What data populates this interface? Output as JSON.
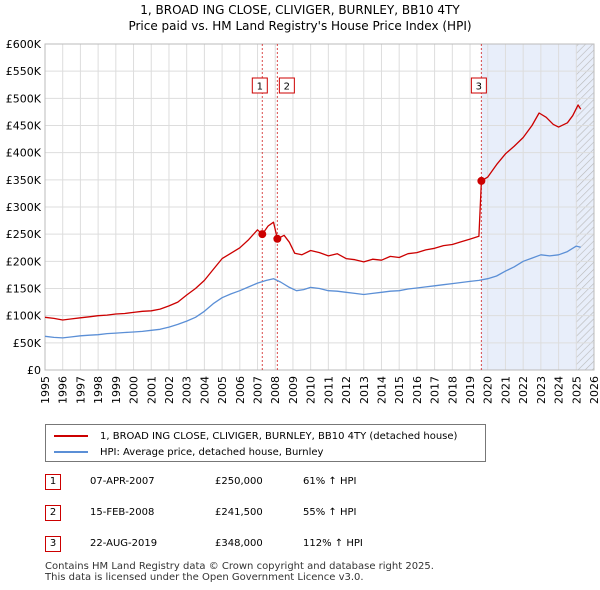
{
  "title": {
    "line1": "1, BROAD ING CLOSE, CLIVIGER, BURNLEY, BB10 4TY",
    "line2": "Price paid vs. HM Land Registry's House Price Index (HPI)"
  },
  "chart_data": {
    "type": "line",
    "xlim": [
      1995,
      2026
    ],
    "ylim": [
      0,
      600000
    ],
    "y_ticks": [
      0,
      50000,
      100000,
      150000,
      200000,
      250000,
      300000,
      350000,
      400000,
      450000,
      500000,
      550000,
      600000
    ],
    "y_tick_labels": [
      "£0",
      "£50K",
      "£100K",
      "£150K",
      "£200K",
      "£250K",
      "£300K",
      "£350K",
      "£400K",
      "£450K",
      "£500K",
      "£550K",
      "£600K"
    ],
    "x_tick_labels": [
      "1995",
      "1996",
      "1997",
      "1998",
      "1999",
      "2000",
      "2001",
      "2002",
      "2003",
      "2004",
      "2005",
      "2006",
      "2007",
      "2008",
      "2009",
      "2010",
      "2011",
      "2012",
      "2013",
      "2014",
      "2015",
      "2016",
      "2017",
      "2018",
      "2019",
      "2020",
      "2021",
      "2022",
      "2023",
      "2024",
      "2025",
      "2026"
    ],
    "grid": true,
    "highlight_range": [
      2019.64,
      2026
    ],
    "hatch_from": 2025.0,
    "series": [
      {
        "name": "1, BROAD ING CLOSE, CLIVIGER, BURNLEY, BB10 4TY (detached house)",
        "color": "#cc0000",
        "points": [
          [
            1995.0,
            97000
          ],
          [
            1995.5,
            95000
          ],
          [
            1996.0,
            92000
          ],
          [
            1996.5,
            94000
          ],
          [
            1997.0,
            96000
          ],
          [
            1997.5,
            98000
          ],
          [
            1998.0,
            100000
          ],
          [
            1998.5,
            101000
          ],
          [
            1999.0,
            103000
          ],
          [
            1999.5,
            104000
          ],
          [
            2000.0,
            106000
          ],
          [
            2000.5,
            108000
          ],
          [
            2001.0,
            109000
          ],
          [
            2001.5,
            112000
          ],
          [
            2002.0,
            118000
          ],
          [
            2002.5,
            125000
          ],
          [
            2003.0,
            138000
          ],
          [
            2003.5,
            150000
          ],
          [
            2004.0,
            165000
          ],
          [
            2004.5,
            185000
          ],
          [
            2005.0,
            205000
          ],
          [
            2005.5,
            215000
          ],
          [
            2006.0,
            225000
          ],
          [
            2006.5,
            240000
          ],
          [
            2007.0,
            258000
          ],
          [
            2007.27,
            250000
          ],
          [
            2007.6,
            265000
          ],
          [
            2007.9,
            272000
          ],
          [
            2008.12,
            241500
          ],
          [
            2008.5,
            248000
          ],
          [
            2008.8,
            235000
          ],
          [
            2009.1,
            215000
          ],
          [
            2009.5,
            212000
          ],
          [
            2010.0,
            220000
          ],
          [
            2010.5,
            216000
          ],
          [
            2011.0,
            210000
          ],
          [
            2011.5,
            214000
          ],
          [
            2012.0,
            205000
          ],
          [
            2012.5,
            203000
          ],
          [
            2013.0,
            199000
          ],
          [
            2013.5,
            204000
          ],
          [
            2014.0,
            202000
          ],
          [
            2014.5,
            209000
          ],
          [
            2015.0,
            207000
          ],
          [
            2015.5,
            214000
          ],
          [
            2016.0,
            216000
          ],
          [
            2016.5,
            221000
          ],
          [
            2017.0,
            224000
          ],
          [
            2017.5,
            229000
          ],
          [
            2018.0,
            231000
          ],
          [
            2018.5,
            236000
          ],
          [
            2019.0,
            241000
          ],
          [
            2019.5,
            246000
          ],
          [
            2019.64,
            348000
          ],
          [
            2020.0,
            355000
          ],
          [
            2020.5,
            378000
          ],
          [
            2021.0,
            398000
          ],
          [
            2021.5,
            412000
          ],
          [
            2022.0,
            428000
          ],
          [
            2022.5,
            450000
          ],
          [
            2022.9,
            473000
          ],
          [
            2023.3,
            465000
          ],
          [
            2023.7,
            452000
          ],
          [
            2024.0,
            447000
          ],
          [
            2024.5,
            455000
          ],
          [
            2024.8,
            468000
          ],
          [
            2025.1,
            488000
          ],
          [
            2025.25,
            480000
          ]
        ]
      },
      {
        "name": "HPI: Average price, detached house, Burnley",
        "color": "#5b8fd6",
        "points": [
          [
            1995.0,
            62000
          ],
          [
            1995.5,
            60000
          ],
          [
            1996.0,
            59000
          ],
          [
            1996.5,
            61000
          ],
          [
            1997.0,
            63000
          ],
          [
            1997.5,
            64000
          ],
          [
            1998.0,
            65000
          ],
          [
            1998.5,
            67000
          ],
          [
            1999.0,
            68000
          ],
          [
            1999.5,
            69000
          ],
          [
            2000.0,
            70000
          ],
          [
            2000.5,
            71000
          ],
          [
            2001.0,
            73000
          ],
          [
            2001.5,
            75000
          ],
          [
            2002.0,
            79000
          ],
          [
            2002.5,
            84000
          ],
          [
            2003.0,
            90000
          ],
          [
            2003.5,
            97000
          ],
          [
            2004.0,
            108000
          ],
          [
            2004.5,
            122000
          ],
          [
            2005.0,
            133000
          ],
          [
            2005.5,
            140000
          ],
          [
            2006.0,
            146000
          ],
          [
            2006.5,
            153000
          ],
          [
            2007.0,
            160000
          ],
          [
            2007.5,
            165000
          ],
          [
            2007.9,
            168000
          ],
          [
            2008.3,
            162000
          ],
          [
            2008.8,
            152000
          ],
          [
            2009.2,
            146000
          ],
          [
            2009.6,
            148000
          ],
          [
            2010.0,
            152000
          ],
          [
            2010.5,
            150000
          ],
          [
            2011.0,
            146000
          ],
          [
            2011.5,
            145000
          ],
          [
            2012.0,
            143000
          ],
          [
            2012.5,
            141000
          ],
          [
            2013.0,
            139000
          ],
          [
            2013.5,
            141000
          ],
          [
            2014.0,
            143000
          ],
          [
            2014.5,
            145000
          ],
          [
            2015.0,
            146000
          ],
          [
            2015.5,
            149000
          ],
          [
            2016.0,
            151000
          ],
          [
            2016.5,
            153000
          ],
          [
            2017.0,
            155000
          ],
          [
            2017.5,
            157000
          ],
          [
            2018.0,
            159000
          ],
          [
            2018.5,
            161000
          ],
          [
            2019.0,
            163000
          ],
          [
            2019.5,
            165000
          ],
          [
            2020.0,
            168000
          ],
          [
            2020.5,
            173000
          ],
          [
            2021.0,
            182000
          ],
          [
            2021.5,
            190000
          ],
          [
            2022.0,
            200000
          ],
          [
            2022.5,
            206000
          ],
          [
            2023.0,
            212000
          ],
          [
            2023.5,
            210000
          ],
          [
            2024.0,
            212000
          ],
          [
            2024.5,
            218000
          ],
          [
            2025.0,
            228000
          ],
          [
            2025.25,
            226000
          ]
        ]
      }
    ],
    "sales": [
      {
        "label": "1",
        "x": 2007.27,
        "y": 250000
      },
      {
        "label": "2",
        "x": 2008.12,
        "y": 241500
      },
      {
        "label": "3",
        "x": 2019.64,
        "y": 348000
      }
    ]
  },
  "legend": {
    "property": "1, BROAD ING CLOSE, CLIVIGER, BURNLEY, BB10 4TY (detached house)",
    "hpi": "HPI: Average price, detached house, Burnley",
    "property_color": "#cc0000",
    "hpi_color": "#5b8fd6"
  },
  "transactions": [
    {
      "num": "1",
      "date": "07-APR-2007",
      "price": "£250,000",
      "hpi": "61% ↑ HPI"
    },
    {
      "num": "2",
      "date": "15-FEB-2008",
      "price": "£241,500",
      "hpi": "55% ↑ HPI"
    },
    {
      "num": "3",
      "date": "22-AUG-2019",
      "price": "£348,000",
      "hpi": "112% ↑ HPI"
    }
  ],
  "footer": {
    "line1": "Contains HM Land Registry data © Crown copyright and database right 2025.",
    "line2": "This data is licensed under the Open Government Licence v3.0."
  }
}
